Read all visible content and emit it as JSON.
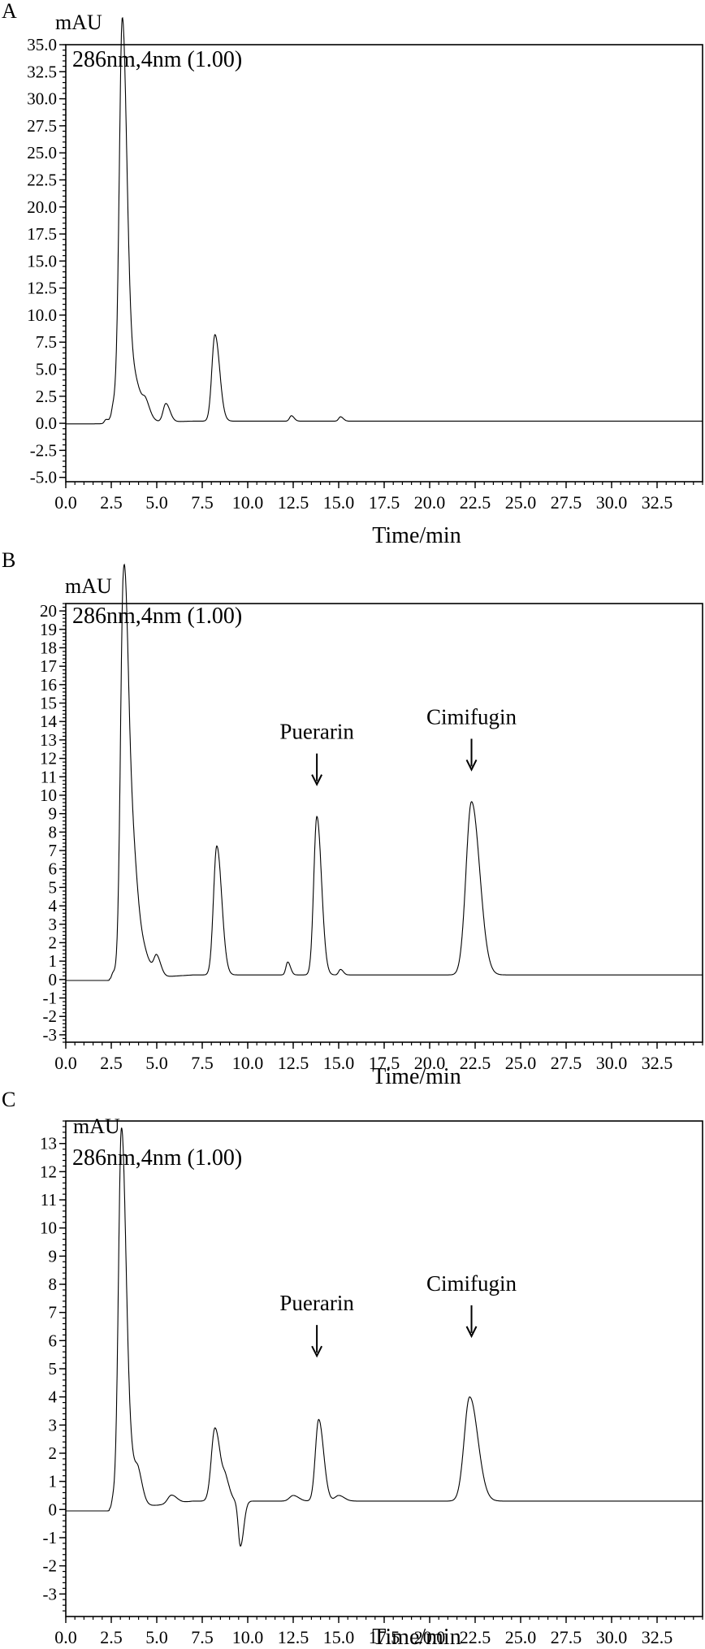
{
  "chart_data": [
    {
      "type": "line",
      "panel_label": "A",
      "ylabel": "mAU",
      "xlabel": "Time/min",
      "detector_label": "286nm,4nm (1.00)",
      "xlim": [
        0,
        35
      ],
      "ylim": [
        -5.4,
        35
      ],
      "xticks": [
        "0.0",
        "2.5",
        "5.0",
        "7.5",
        "10.0",
        "12.5",
        "15.0",
        "17.5",
        "20.0",
        "22.5",
        "25.0",
        "27.5",
        "30.0",
        "32.5"
      ],
      "yticks": [
        "-5.0",
        "-2.5",
        "0.0",
        "2.5",
        "5.0",
        "7.5",
        "10.0",
        "12.5",
        "15.0",
        "17.5",
        "20.0",
        "22.5",
        "25.0",
        "27.5",
        "30.0",
        "32.5",
        "35.0"
      ],
      "baseline": 0.0,
      "drift": 0.2,
      "peaks": [
        {
          "rt": 2.2,
          "height": 0.3,
          "width": 0.08
        },
        {
          "rt": 2.6,
          "height": 0.7,
          "width": 0.08
        },
        {
          "rt": 3.1,
          "height": 32.5,
          "width": 0.16
        },
        {
          "rt": 3.35,
          "height": 6.0,
          "width": 0.4
        },
        {
          "rt": 4.4,
          "height": 1.0,
          "width": 0.15
        },
        {
          "rt": 5.5,
          "height": 1.7,
          "width": 0.15
        },
        {
          "rt": 8.2,
          "height": 8.0,
          "width": 0.17
        },
        {
          "rt": 12.4,
          "height": 0.5,
          "width": 0.1
        },
        {
          "rt": 15.1,
          "height": 0.4,
          "width": 0.1
        }
      ],
      "annotations": []
    },
    {
      "type": "line",
      "panel_label": "B",
      "ylabel": "mAU",
      "xlabel": "Time/min",
      "detector_label": "286nm,4nm (1.00)",
      "xlim": [
        0,
        35
      ],
      "ylim": [
        -3.4,
        20.4
      ],
      "xticks": [
        "0.0",
        "2.5",
        "5.0",
        "7.5",
        "10.0",
        "12.5",
        "15.0",
        "17.5",
        "20.0",
        "22.5",
        "25.0",
        "27.5",
        "30.0",
        "32.5"
      ],
      "yticks": [
        "-3",
        "-2",
        "-1",
        "0",
        "1",
        "2",
        "3",
        "4",
        "5",
        "6",
        "7",
        "8",
        "9",
        "10",
        "11",
        "12",
        "13",
        "14",
        "15",
        "16",
        "17",
        "18",
        "19",
        "20"
      ],
      "baseline": 0.0,
      "drift": 0.25,
      "peaks": [
        {
          "rt": 2.6,
          "height": 0.3,
          "width": 0.08
        },
        {
          "rt": 3.15,
          "height": 16.5,
          "width": 0.15
        },
        {
          "rt": 3.45,
          "height": 9.5,
          "width": 0.28
        },
        {
          "rt": 4.4,
          "height": 0.8,
          "width": 0.25
        },
        {
          "rt": 5.0,
          "height": 1.0,
          "width": 0.15
        },
        {
          "rt": 8.3,
          "height": 7.0,
          "width": 0.18
        },
        {
          "rt": 12.2,
          "height": 0.7,
          "width": 0.1
        },
        {
          "rt": 13.8,
          "height": 8.6,
          "width": 0.17
        },
        {
          "rt": 15.1,
          "height": 0.3,
          "width": 0.1
        },
        {
          "rt": 22.3,
          "height": 9.4,
          "width": 0.3
        }
      ],
      "annotations": [
        {
          "text": "Puerarin",
          "rt": 13.8,
          "y": 10.5
        },
        {
          "text": "Cimifugin",
          "rt": 22.3,
          "y": 11.3
        }
      ]
    },
    {
      "type": "line",
      "panel_label": "C",
      "ylabel": "mAU",
      "xlabel": "Time/min",
      "detector_label": "286nm,4nm (1.00)",
      "xlim": [
        0,
        35
      ],
      "ylim": [
        -3.8,
        13.8
      ],
      "xticks": [
        "0.0",
        "2.5",
        "5.0",
        "7.5",
        "10.0",
        "12.5",
        "15.0",
        "17.5",
        "20.0",
        "22.5",
        "25.0",
        "27.5",
        "30.0",
        "32.5"
      ],
      "yticks": [
        "-3",
        "-2",
        "-1",
        "0",
        "1",
        "2",
        "3",
        "4",
        "5",
        "6",
        "7",
        "8",
        "9",
        "10",
        "11",
        "12",
        "13"
      ],
      "baseline": 0.0,
      "drift": 0.3,
      "peaks": [
        {
          "rt": 2.6,
          "height": 0.3,
          "width": 0.08
        },
        {
          "rt": 3.05,
          "height": 12.5,
          "width": 0.16
        },
        {
          "rt": 3.4,
          "height": 2.0,
          "width": 0.3
        },
        {
          "rt": 4.0,
          "height": 0.6,
          "width": 0.15
        },
        {
          "rt": 5.8,
          "height": 0.3,
          "width": 0.2
        },
        {
          "rt": 8.2,
          "height": 2.6,
          "width": 0.2
        },
        {
          "rt": 8.8,
          "height": 0.6,
          "width": 0.15
        },
        {
          "rt": 9.6,
          "height": -1.6,
          "width": 0.12
        },
        {
          "rt": 12.5,
          "height": 0.2,
          "width": 0.2
        },
        {
          "rt": 13.9,
          "height": 2.9,
          "width": 0.18
        },
        {
          "rt": 15.0,
          "height": 0.2,
          "width": 0.2
        },
        {
          "rt": 22.2,
          "height": 3.7,
          "width": 0.3
        }
      ],
      "annotations": [
        {
          "text": "Puerarin",
          "rt": 13.8,
          "y": 5.4
        },
        {
          "text": "Cimifugin",
          "rt": 22.3,
          "y": 6.1
        }
      ]
    }
  ]
}
